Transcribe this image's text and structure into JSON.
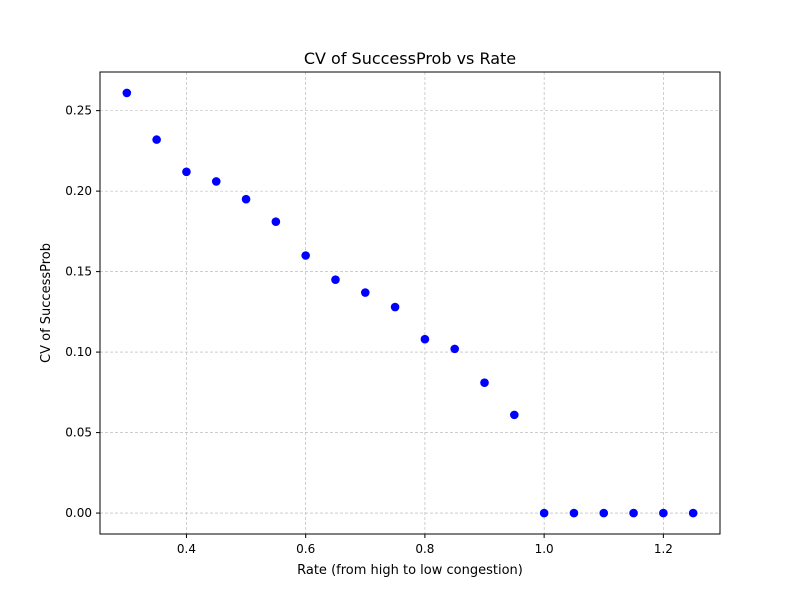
{
  "chart_data": {
    "type": "scatter",
    "title": "CV of SuccessProb vs Rate",
    "xlabel": "Rate (from high to low congestion)",
    "ylabel": "CV of SuccessProb",
    "xlim": [
      0.255,
      1.295
    ],
    "ylim": [
      -0.013,
      0.274
    ],
    "x_ticks": [
      0.4,
      0.6,
      0.8,
      1.0,
      1.2
    ],
    "x_tick_labels": [
      "0.4",
      "0.6",
      "0.8",
      "1.0",
      "1.2"
    ],
    "y_ticks": [
      0.0,
      0.05,
      0.1,
      0.15,
      0.2,
      0.25
    ],
    "y_tick_labels": [
      "0.00",
      "0.05",
      "0.10",
      "0.15",
      "0.20",
      "0.25"
    ],
    "grid": true,
    "marker_color": "#0000ff",
    "series": [
      {
        "points": [
          {
            "x": 0.3,
            "y": 0.261
          },
          {
            "x": 0.35,
            "y": 0.232
          },
          {
            "x": 0.4,
            "y": 0.212
          },
          {
            "x": 0.45,
            "y": 0.206
          },
          {
            "x": 0.5,
            "y": 0.195
          },
          {
            "x": 0.55,
            "y": 0.181
          },
          {
            "x": 0.6,
            "y": 0.16
          },
          {
            "x": 0.65,
            "y": 0.145
          },
          {
            "x": 0.7,
            "y": 0.137
          },
          {
            "x": 0.75,
            "y": 0.128
          },
          {
            "x": 0.8,
            "y": 0.108
          },
          {
            "x": 0.85,
            "y": 0.102
          },
          {
            "x": 0.9,
            "y": 0.081
          },
          {
            "x": 0.95,
            "y": 0.061
          },
          {
            "x": 1.0,
            "y": 0.0
          },
          {
            "x": 1.05,
            "y": 0.0
          },
          {
            "x": 1.1,
            "y": 0.0
          },
          {
            "x": 1.15,
            "y": 0.0
          },
          {
            "x": 1.2,
            "y": 0.0
          },
          {
            "x": 1.25,
            "y": 0.0
          }
        ]
      }
    ]
  }
}
